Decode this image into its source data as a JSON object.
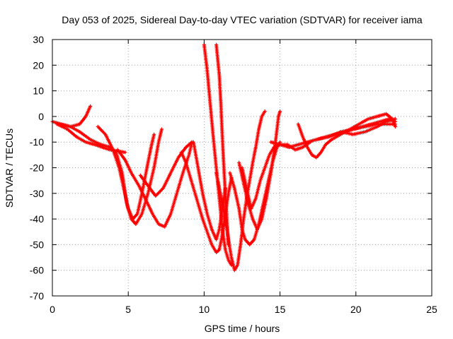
{
  "chart_data": {
    "type": "scatter",
    "title": "Day 053 of 2025, Sidereal Day-to-day VTEC variation (SDTVAR) for receiver iama",
    "xlabel": "GPS time / hours",
    "ylabel": "SDTVAR / TECUs",
    "xlim": [
      0,
      25
    ],
    "ylim": [
      -70,
      30
    ],
    "xticks": [
      "0",
      "5",
      "10",
      "15",
      "20",
      "25"
    ],
    "yticks": [
      "30",
      "20",
      "10",
      "0",
      "-10",
      "-20",
      "-30",
      "-40",
      "-50",
      "-60",
      "-70"
    ],
    "grid": true,
    "marker": "+",
    "color": "#ff0000",
    "series": [
      {
        "points": [
          [
            0.0,
            -2
          ],
          [
            0.6,
            -3
          ],
          [
            1.2,
            -4
          ],
          [
            1.8,
            -6
          ],
          [
            2.5,
            -9
          ],
          [
            3.2,
            -11
          ],
          [
            3.8,
            -12
          ],
          [
            4.2,
            -14
          ],
          [
            4.6,
            -22
          ],
          [
            4.9,
            -34
          ],
          [
            5.2,
            -40
          ],
          [
            5.5,
            -42
          ],
          [
            5.9,
            -38
          ],
          [
            6.3,
            -30
          ],
          [
            6.7,
            -20
          ],
          [
            7.0,
            -10
          ],
          [
            7.2,
            -5
          ]
        ]
      },
      {
        "points": [
          [
            0.3,
            -3
          ],
          [
            1.0,
            -5
          ],
          [
            1.6,
            -8
          ],
          [
            2.2,
            -10
          ],
          [
            2.8,
            -11
          ],
          [
            3.3,
            -12
          ],
          [
            3.8,
            -13
          ],
          [
            4.3,
            -13.5
          ],
          [
            4.8,
            -14
          ]
        ]
      },
      {
        "points": [
          [
            0.5,
            -3
          ],
          [
            1.2,
            -4
          ],
          [
            1.8,
            -3
          ],
          [
            2.2,
            0
          ],
          [
            2.5,
            4
          ]
        ]
      },
      {
        "points": [
          [
            3.0,
            -4
          ],
          [
            3.5,
            -7
          ],
          [
            4.0,
            -13
          ],
          [
            4.4,
            -20
          ],
          [
            4.7,
            -28
          ],
          [
            5.0,
            -36
          ],
          [
            5.3,
            -40
          ],
          [
            5.6,
            -38
          ],
          [
            5.9,
            -30
          ],
          [
            6.2,
            -21
          ],
          [
            6.5,
            -12
          ],
          [
            6.7,
            -7
          ]
        ]
      },
      {
        "points": [
          [
            4.3,
            -13
          ],
          [
            4.8,
            -17
          ],
          [
            5.2,
            -22
          ],
          [
            5.7,
            -27
          ],
          [
            6.2,
            -33
          ],
          [
            6.6,
            -38
          ],
          [
            7.0,
            -42
          ],
          [
            7.4,
            -43
          ],
          [
            7.8,
            -38
          ],
          [
            8.2,
            -30
          ],
          [
            8.6,
            -22
          ],
          [
            9.0,
            -15
          ],
          [
            9.2,
            -10
          ]
        ]
      },
      {
        "points": [
          [
            5.8,
            -23
          ],
          [
            6.3,
            -27
          ],
          [
            6.8,
            -31
          ],
          [
            7.3,
            -28
          ],
          [
            7.8,
            -22
          ],
          [
            8.3,
            -16
          ],
          [
            8.8,
            -12
          ],
          [
            9.2,
            -10
          ]
        ]
      },
      {
        "points": [
          [
            8.5,
            -14
          ],
          [
            8.8,
            -18
          ],
          [
            9.2,
            -26
          ],
          [
            9.6,
            -34
          ],
          [
            9.9,
            -40
          ],
          [
            10.2,
            -45
          ],
          [
            10.5,
            -50
          ],
          [
            10.8,
            -53
          ],
          [
            11.0,
            -52
          ],
          [
            11.2,
            -46
          ],
          [
            11.4,
            -38
          ],
          [
            11.6,
            -30
          ],
          [
            11.8,
            -24
          ]
        ]
      },
      {
        "points": [
          [
            9.3,
            -10
          ],
          [
            9.6,
            -20
          ],
          [
            9.9,
            -30
          ],
          [
            10.2,
            -38
          ],
          [
            10.5,
            -44
          ],
          [
            10.8,
            -48
          ],
          [
            11.0,
            -44
          ],
          [
            11.2,
            -36
          ],
          [
            11.4,
            -28
          ]
        ]
      },
      {
        "points": [
          [
            10.0,
            28
          ],
          [
            10.2,
            18
          ],
          [
            10.4,
            5
          ],
          [
            10.6,
            -8
          ],
          [
            10.8,
            -20
          ],
          [
            11.0,
            -32
          ],
          [
            11.2,
            -44
          ],
          [
            11.4,
            -52
          ],
          [
            11.6,
            -56
          ],
          [
            11.8,
            -58
          ]
        ]
      },
      {
        "points": [
          [
            10.8,
            28
          ],
          [
            11.0,
            16
          ],
          [
            11.1,
            5
          ],
          [
            11.2,
            -8
          ],
          [
            11.3,
            -20
          ],
          [
            11.4,
            -30
          ],
          [
            11.5,
            -40
          ],
          [
            11.6,
            -50
          ]
        ]
      },
      {
        "points": [
          [
            10.8,
            -22
          ],
          [
            11.0,
            -28
          ],
          [
            11.2,
            -34
          ],
          [
            11.4,
            -40
          ],
          [
            11.6,
            -48
          ],
          [
            11.8,
            -55
          ],
          [
            12.0,
            -60
          ],
          [
            12.2,
            -58
          ],
          [
            12.4,
            -50
          ],
          [
            12.6,
            -40
          ],
          [
            12.8,
            -32
          ],
          [
            13.0,
            -25
          ],
          [
            13.2,
            -18
          ],
          [
            13.4,
            -12
          ],
          [
            13.6,
            -5
          ],
          [
            13.8,
            0
          ],
          [
            14.0,
            2
          ]
        ]
      },
      {
        "points": [
          [
            11.7,
            -22
          ],
          [
            12.0,
            -28
          ],
          [
            12.3,
            -36
          ],
          [
            12.5,
            -44
          ],
          [
            12.7,
            -48
          ],
          [
            13.0,
            -50
          ],
          [
            13.3,
            -48
          ],
          [
            13.6,
            -42
          ],
          [
            13.9,
            -34
          ],
          [
            14.2,
            -26
          ],
          [
            14.5,
            -18
          ],
          [
            14.8,
            -12
          ],
          [
            15.0,
            -10
          ]
        ]
      },
      {
        "points": [
          [
            12.3,
            -18
          ],
          [
            12.6,
            -26
          ],
          [
            12.9,
            -34
          ],
          [
            13.2,
            -40
          ],
          [
            13.5,
            -44
          ],
          [
            13.8,
            -40
          ],
          [
            14.1,
            -32
          ],
          [
            14.4,
            -22
          ],
          [
            14.7,
            -10
          ],
          [
            14.9,
            0
          ],
          [
            15.0,
            2
          ]
        ]
      },
      {
        "points": [
          [
            12.5,
            -20
          ],
          [
            12.8,
            -28
          ],
          [
            13.1,
            -36
          ],
          [
            13.4,
            -32
          ],
          [
            13.7,
            -25
          ],
          [
            14.0,
            -20
          ],
          [
            14.3,
            -15
          ],
          [
            14.6,
            -12
          ],
          [
            15.0,
            -11
          ],
          [
            15.5,
            -11
          ],
          [
            16.0,
            -13
          ],
          [
            16.5,
            -12
          ],
          [
            17.0,
            -10
          ]
        ]
      },
      {
        "points": [
          [
            14.4,
            -10
          ],
          [
            15.0,
            -11
          ],
          [
            15.6,
            -12
          ],
          [
            16.2,
            -11
          ],
          [
            16.8,
            -10
          ],
          [
            17.4,
            -9
          ],
          [
            18.0,
            -8
          ],
          [
            18.6,
            -7
          ],
          [
            19.2,
            -6
          ],
          [
            19.8,
            -5
          ],
          [
            20.4,
            -4
          ],
          [
            21.0,
            -3
          ],
          [
            21.6,
            -2
          ],
          [
            22.2,
            -1
          ],
          [
            22.6,
            -2
          ]
        ]
      },
      {
        "points": [
          [
            16.2,
            -3
          ],
          [
            16.5,
            -8
          ],
          [
            16.8,
            -12
          ],
          [
            17.1,
            -15
          ],
          [
            17.4,
            -16
          ],
          [
            17.7,
            -14
          ],
          [
            18.0,
            -11
          ],
          [
            18.4,
            -9
          ],
          [
            19.0,
            -7
          ],
          [
            19.6,
            -5
          ],
          [
            20.2,
            -3
          ],
          [
            20.8,
            -1
          ],
          [
            21.4,
            0
          ],
          [
            22.0,
            1
          ],
          [
            22.4,
            -1
          ],
          [
            22.6,
            -4
          ]
        ]
      },
      {
        "points": [
          [
            17.4,
            -9
          ],
          [
            18.2,
            -8
          ],
          [
            19.0,
            -6
          ],
          [
            19.8,
            -5
          ],
          [
            20.6,
            -4
          ],
          [
            21.4,
            -3
          ],
          [
            22.0,
            -3
          ],
          [
            22.6,
            -3
          ]
        ]
      },
      {
        "points": [
          [
            19.0,
            -6
          ],
          [
            19.8,
            -7
          ],
          [
            20.6,
            -6
          ],
          [
            21.4,
            -4
          ],
          [
            22.0,
            -2
          ],
          [
            22.6,
            -1
          ]
        ]
      }
    ]
  }
}
